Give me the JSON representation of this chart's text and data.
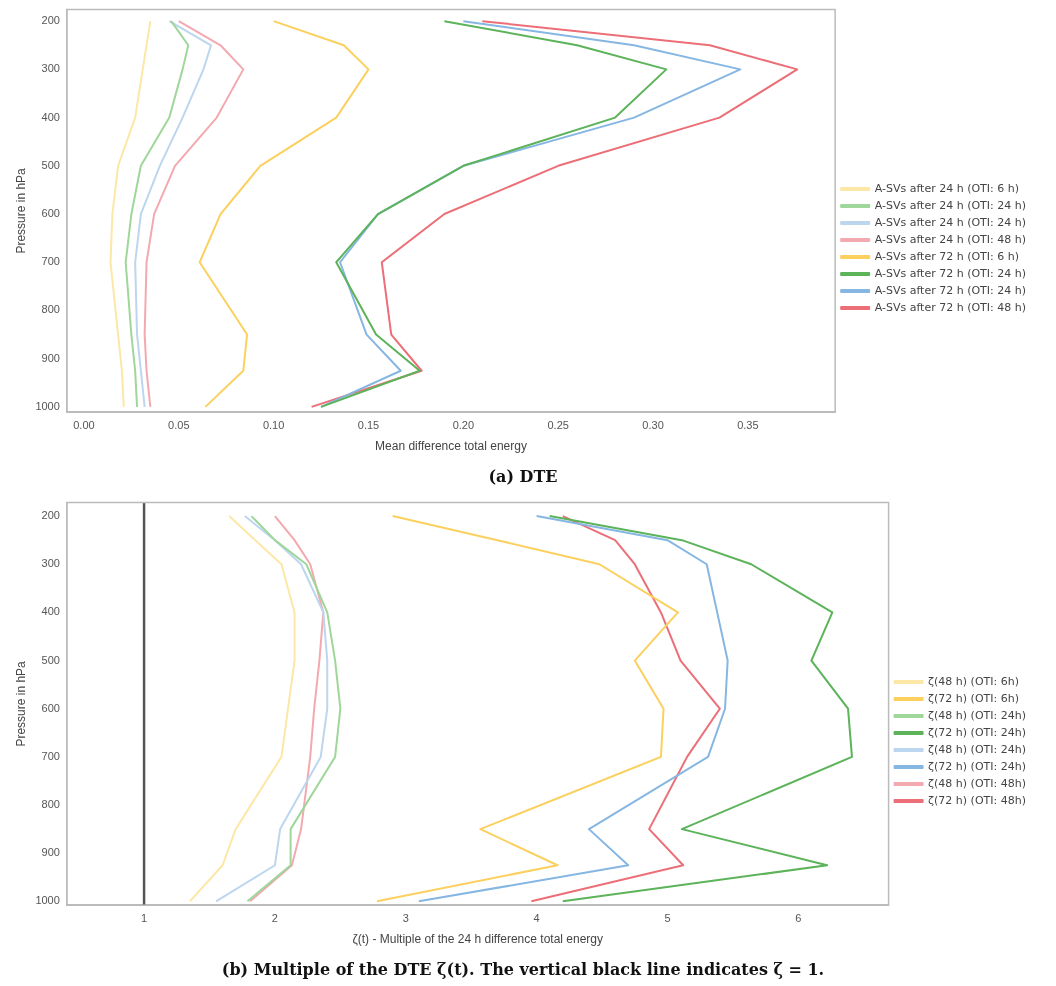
{
  "chart_data": [
    {
      "type": "line",
      "title": "(a) DTE",
      "xlabel": "Mean difference total energy",
      "ylabel": "Pressure in hPa",
      "xlim": [
        -0.009,
        0.396
      ],
      "ylim": [
        1011,
        176
      ],
      "xticks": [
        {
          "value": 0,
          "label": "0.00"
        },
        {
          "value": 0.05,
          "label": "0.05"
        },
        {
          "value": 0.1,
          "label": "0.10"
        },
        {
          "value": 0.15,
          "label": "0.15"
        },
        {
          "value": 0.2,
          "label": "0.20"
        },
        {
          "value": 0.25,
          "label": "0.25"
        },
        {
          "value": 0.3,
          "label": "0.30"
        },
        {
          "value": 0.35,
          "label": "0.35"
        }
      ],
      "yticks": [
        200,
        300,
        400,
        500,
        600,
        700,
        800,
        900,
        1000
      ],
      "grid": false,
      "legend": "right",
      "marker": "none",
      "series": [
        {
          "name": "A-SVs after 24 h (OTI: 6 h)",
          "color": "#fde7a6",
          "x": [
            0.035,
            0.033,
            0.031,
            0.027,
            0.018,
            0.015,
            0.014,
            0.018,
            0.02,
            0.021
          ],
          "values": [
            200,
            250,
            300,
            400,
            500,
            600,
            700,
            850,
            925,
            1000
          ]
        },
        {
          "name": "A-SVs after 24 h (OTI: 24 h)",
          "color": "#9fd69a",
          "x": [
            0.046,
            0.055,
            0.052,
            0.045,
            0.03,
            0.025,
            0.022,
            0.025,
            0.027,
            0.028
          ],
          "values": [
            200,
            250,
            300,
            400,
            500,
            600,
            700,
            850,
            925,
            1000
          ]
        },
        {
          "name": "A-SVs after 24 h (OTI: 24 h)",
          "color": "#bcd6ef",
          "x": [
            0.045,
            0.067,
            0.063,
            0.052,
            0.04,
            0.03,
            0.027,
            0.028,
            0.03,
            0.032
          ],
          "values": [
            200,
            250,
            300,
            400,
            500,
            600,
            700,
            850,
            925,
            1000
          ]
        },
        {
          "name": "A-SVs after 24 h (OTI: 48 h)",
          "color": "#f2a9b0",
          "x": [
            0.05,
            0.072,
            0.084,
            0.07,
            0.048,
            0.037,
            0.033,
            0.032,
            0.033,
            0.035
          ],
          "values": [
            200,
            250,
            300,
            400,
            500,
            600,
            700,
            850,
            925,
            1000
          ]
        },
        {
          "name": "A-SVs after 72 h (OTI: 6 h)",
          "color": "#fbd05e",
          "x": [
            0.1,
            0.137,
            0.15,
            0.133,
            0.093,
            0.072,
            0.061,
            0.086,
            0.084,
            0.064
          ],
          "values": [
            200,
            250,
            300,
            400,
            500,
            600,
            700,
            850,
            925,
            1000
          ]
        },
        {
          "name": "A-SVs after 72 h (OTI: 24 h)",
          "color": "#5cb35a",
          "x": [
            0.19,
            0.26,
            0.307,
            0.28,
            0.2,
            0.155,
            0.133,
            0.154,
            0.177,
            0.125
          ],
          "values": [
            200,
            250,
            300,
            400,
            500,
            600,
            700,
            850,
            925,
            1000
          ]
        },
        {
          "name": "A-SVs after 72 h (OTI: 24 h)",
          "color": "#86b6e2",
          "x": [
            0.2,
            0.29,
            0.346,
            0.29,
            0.2,
            0.155,
            0.135,
            0.149,
            0.167,
            0.125
          ],
          "values": [
            200,
            250,
            300,
            400,
            500,
            600,
            700,
            850,
            925,
            1000
          ]
        },
        {
          "name": "A-SVs after 72 h (OTI: 48 h)",
          "color": "#ec6f78",
          "x": [
            0.21,
            0.33,
            0.376,
            0.335,
            0.25,
            0.19,
            0.157,
            0.162,
            0.178,
            0.12
          ],
          "values": [
            200,
            250,
            300,
            400,
            500,
            600,
            700,
            850,
            925,
            1000
          ]
        }
      ]
    },
    {
      "type": "line",
      "title": "(b) Multiple of the DTE ζ(t). The vertical black line indicates ζ = 1.",
      "xlabel": "ζ(t) - Multiple of the 24 h difference total energy",
      "ylabel": "Pressure in hPa",
      "xlim": [
        0.41,
        6.69
      ],
      "ylim": [
        1008,
        172
      ],
      "xticks": [
        1,
        2,
        3,
        4,
        5,
        6
      ],
      "yticks": [
        200,
        300,
        400,
        500,
        600,
        700,
        800,
        900,
        1000
      ],
      "grid": false,
      "legend": "right",
      "marker": "none",
      "ref_lines": [
        {
          "axis": "x",
          "value": 1,
          "color": "#555555"
        }
      ],
      "series": [
        {
          "name": "ζ(48 h) (OTI: 6h)",
          "color": "#fde7a6",
          "x": [
            1.65,
            1.85,
            2.05,
            2.15,
            2.15,
            2.1,
            2.05,
            1.7,
            1.6,
            1.35
          ],
          "values": [
            200,
            250,
            300,
            400,
            500,
            600,
            700,
            850,
            925,
            1000
          ]
        },
        {
          "name": "ζ(72 h) (OTI: 6h)",
          "color": "#fbd05e",
          "x": [
            2.9,
            3.7,
            4.48,
            5.08,
            4.75,
            4.97,
            4.95,
            3.57,
            4.16,
            2.78
          ],
          "values": [
            200,
            250,
            300,
            400,
            500,
            600,
            700,
            850,
            925,
            1000
          ]
        },
        {
          "name": "ζ(48 h) (OTI: 24h)",
          "color": "#9fd69a",
          "x": [
            1.82,
            2.0,
            2.24,
            2.4,
            2.46,
            2.5,
            2.46,
            2.12,
            2.12,
            1.79
          ],
          "values": [
            200,
            250,
            300,
            400,
            500,
            600,
            700,
            850,
            925,
            1000
          ]
        },
        {
          "name": "ζ(72 h) (OTI: 24h)",
          "color": "#5cb35a",
          "x": [
            4.1,
            5.11,
            5.64,
            6.26,
            6.1,
            6.38,
            6.41,
            5.11,
            6.22,
            4.2
          ],
          "values": [
            200,
            250,
            300,
            400,
            500,
            600,
            700,
            850,
            925,
            1000
          ]
        },
        {
          "name": "ζ(48 h) (OTI: 24h)",
          "color": "#bcd6ef",
          "x": [
            1.77,
            2.0,
            2.2,
            2.37,
            2.4,
            2.4,
            2.35,
            2.04,
            2.0,
            1.55
          ],
          "values": [
            200,
            250,
            300,
            400,
            500,
            600,
            700,
            850,
            925,
            1000
          ]
        },
        {
          "name": "ζ(72 h) (OTI: 24h)",
          "color": "#86b6e2",
          "x": [
            4.0,
            5.0,
            5.3,
            5.38,
            5.46,
            5.44,
            5.31,
            4.4,
            4.7,
            3.1
          ],
          "values": [
            200,
            250,
            300,
            400,
            500,
            600,
            700,
            850,
            925,
            1000
          ]
        },
        {
          "name": "ζ(48 h) (OTI: 48h)",
          "color": "#f2a9b0",
          "x": [
            2.0,
            2.15,
            2.27,
            2.37,
            2.34,
            2.3,
            2.27,
            2.2,
            2.13,
            1.81
          ],
          "values": [
            200,
            250,
            300,
            400,
            500,
            600,
            700,
            850,
            925,
            1000
          ]
        },
        {
          "name": "ζ(72 h) (OTI: 48h)",
          "color": "#ec6f78",
          "x": [
            4.2,
            4.6,
            4.75,
            4.95,
            5.1,
            5.4,
            5.15,
            4.86,
            5.12,
            3.96
          ],
          "values": [
            200,
            250,
            300,
            400,
            500,
            600,
            700,
            850,
            925,
            1000
          ]
        }
      ]
    }
  ]
}
